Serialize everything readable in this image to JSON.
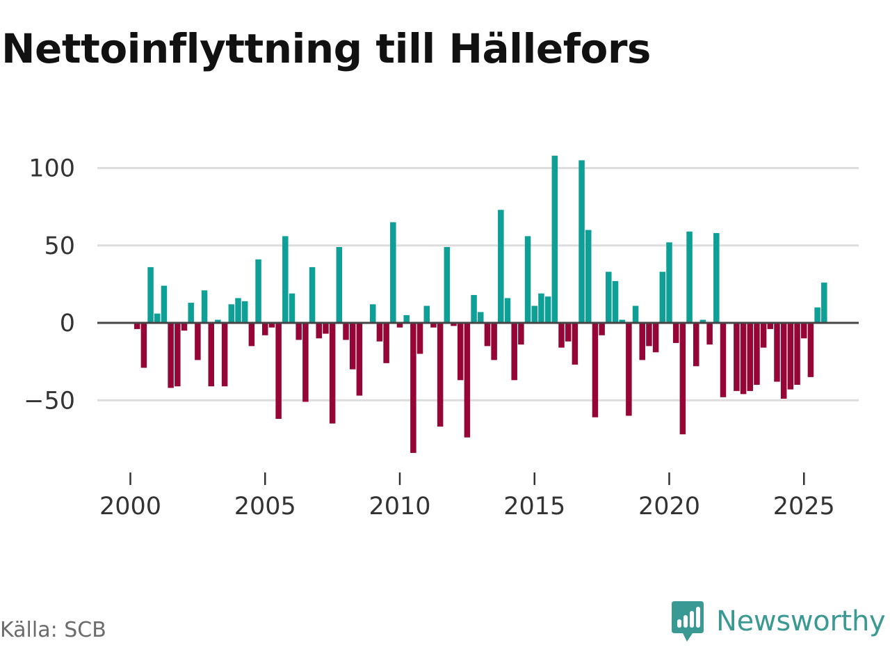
{
  "title": "Nettoinflyttning till Hällefors",
  "source": "Källa: SCB",
  "brand": {
    "name": "Newsworthy",
    "icon": "newsworthy-logo-icon",
    "color": "#3a9a93"
  },
  "colors": {
    "positive": "#0e9f96",
    "negative": "#950536",
    "grid": "#dddddd",
    "zero": "#444444"
  },
  "chart_data": {
    "type": "bar",
    "title": "Nettoinflyttning till Hällefors",
    "xlabel": "",
    "ylabel": "",
    "frequency": "quarterly",
    "x_start": 2000.0,
    "x_step": 0.25,
    "xlim": [
      1999.75,
      2026.5
    ],
    "ylim": [
      -95,
      112
    ],
    "y_ticks": [
      100,
      50,
      0,
      -50
    ],
    "y_tick_labels": [
      "100",
      "50",
      "0",
      "−50"
    ],
    "x_ticks": [
      2000,
      2005,
      2010,
      2015,
      2020,
      2025
    ],
    "x_tick_labels": [
      "2000",
      "2005",
      "2010",
      "2015",
      "2020",
      "2025"
    ],
    "grid": true,
    "values": [
      0,
      -4,
      -29,
      36,
      6,
      24,
      -42,
      -41,
      -5,
      13,
      -24,
      21,
      -41,
      2,
      -41,
      12,
      16,
      14,
      -15,
      41,
      -8,
      -3,
      -62,
      56,
      19,
      -11,
      -51,
      36,
      -10,
      -7,
      -65,
      49,
      -11,
      -30,
      -47,
      0,
      12,
      -12,
      -26,
      65,
      -3,
      5,
      -84,
      -20,
      11,
      -3,
      -67,
      49,
      -2,
      -37,
      -74,
      18,
      7,
      -15,
      -24,
      73,
      16,
      -37,
      -14,
      56,
      11,
      19,
      17,
      108,
      -16,
      -12,
      -27,
      105,
      60,
      -61,
      -8,
      33,
      27,
      2,
      -60,
      11,
      -24,
      -15,
      -19,
      33,
      52,
      -13,
      -72,
      59,
      -28,
      2,
      -14,
      58,
      -48,
      0,
      -44,
      -46,
      -44,
      -40,
      -16,
      -4,
      -38,
      -49,
      -43,
      -40,
      -10,
      -35,
      10,
      26
    ]
  }
}
